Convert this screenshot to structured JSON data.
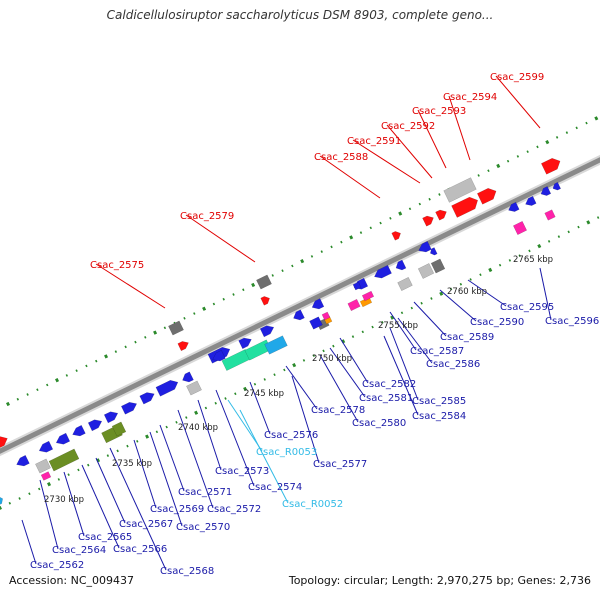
{
  "header": {
    "title": "Caldicellulosiruptor saccharolyticus DSM 8903, complete geno..."
  },
  "footer": {
    "accession": "Accession: NC_009437",
    "summary": "Topology: circular; Length: 2,970,275 bp; Genes: 2,736"
  },
  "colors": {
    "selected_label": "#e00000",
    "gene_label": "#1a1aa8",
    "rna_label": "#33bbe6",
    "cds": "#1f1fe0",
    "tick": "#2b8a2b",
    "backbone": "#8a8a8a"
  },
  "scale_labels": [
    "2730 kbp",
    "2735 kbp",
    "2740 kbp",
    "2745 kbp",
    "2750 kbp",
    "2755 kbp",
    "2760 kbp",
    "2765 kbp"
  ],
  "selected_genes": [
    "Csac_2575",
    "Csac_2579",
    "Csac_2588",
    "Csac_2591",
    "Csac_2592",
    "Csac_2593",
    "Csac_2594",
    "Csac_2599"
  ],
  "gene_labels": [
    "Csac_2562",
    "Csac_2564",
    "Csac_2565",
    "Csac_2566",
    "Csac_2567",
    "Csac_2568",
    "Csac_2569",
    "Csac_2570",
    "Csac_2571",
    "Csac_2572",
    "Csac_2573",
    "Csac_2574",
    "Csac_2576",
    "Csac_2577",
    "Csac_2578",
    "Csac_2580",
    "Csac_2581",
    "Csac_2582",
    "Csac_2584",
    "Csac_2585",
    "Csac_2586",
    "Csac_2587",
    "Csac_2589",
    "Csac_2590",
    "Csac_2595",
    "Csac_2596"
  ],
  "rna_labels": [
    "Csac_R0053",
    "Csac_R0052"
  ]
}
